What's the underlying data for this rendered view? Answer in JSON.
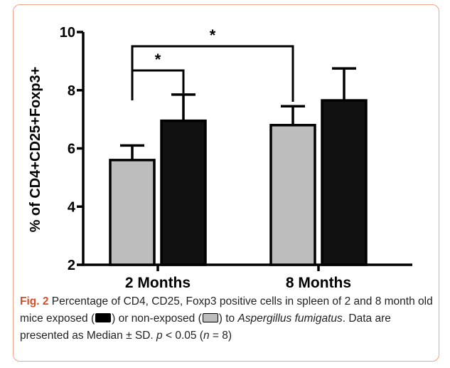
{
  "chart_data": {
    "type": "bar",
    "categories": [
      "2 Months",
      "8 Months"
    ],
    "series": [
      {
        "values": [
          5.6,
          6.8
        ],
        "errors": [
          0.5,
          0.65
        ],
        "color": "#bdbdbd"
      },
      {
        "values": [
          6.95,
          7.65
        ],
        "errors": [
          0.9,
          1.1
        ],
        "color": "#111111"
      }
    ],
    "ylabel": "% of CD4+CD25+Foxp3+",
    "ylim": [
      2,
      10
    ],
    "yticks": [
      "2",
      "4",
      "6",
      "8",
      "10"
    ],
    "significance": [
      {
        "from": [
          0,
          0
        ],
        "to": [
          0,
          1
        ],
        "label": "*"
      },
      {
        "from": [
          0,
          0
        ],
        "to": [
          1,
          0
        ],
        "label": "*"
      }
    ]
  },
  "caption": {
    "fig_label": "Fig. 2",
    "text1": " Percentage of CD4, CD25, Foxp3 positive cells in spleen of 2 and 8 month old mice exposed (",
    "text2": ") or non-exposed (",
    "text3": ") to ",
    "species": "Aspergillus fumigatus",
    "text4": ". Data are presented as Median ± SD. ",
    "p_symbol": "p",
    "text5": " < 0.05 (",
    "n_symbol": "n",
    "text6": " = 8)"
  },
  "colors": {
    "border": "#f0a58a",
    "fig_label": "#d64e2a",
    "exposed": "#111111",
    "non_exposed": "#bdbdbd"
  }
}
